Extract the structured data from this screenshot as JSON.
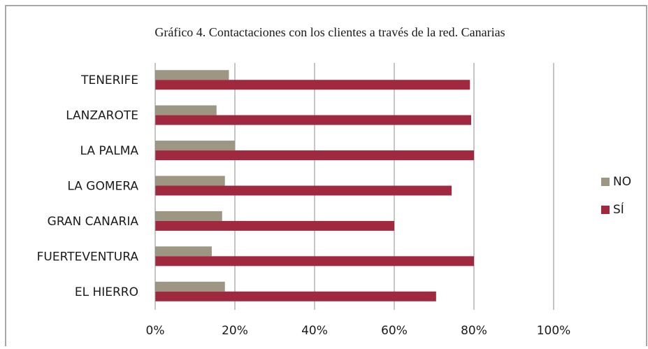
{
  "chart_data": {
    "type": "bar",
    "orientation": "horizontal",
    "title": "Gráfico 4. Contactaciones con los clientes a través de la red. Canarias",
    "categories": [
      "TENERIFE",
      "LANZAROTE",
      "LA PALMA",
      "LA GOMERA",
      "GRAN CANARIA",
      "FUERTEVENTURA",
      "EL HIERRO"
    ],
    "series": [
      {
        "name": "NO",
        "color": "#9c9683",
        "values": [
          18.5,
          15.4,
          20,
          17.5,
          16.8,
          14.2,
          17.5
        ]
      },
      {
        "name": "SÍ",
        "color": "#a0283f",
        "values": [
          79,
          79.3,
          80,
          74.4,
          60,
          80,
          70.5
        ]
      }
    ],
    "xlim": [
      0,
      100
    ],
    "xticks": [
      {
        "value": 0,
        "label": "0%"
      },
      {
        "value": 20,
        "label": "20%"
      },
      {
        "value": 40,
        "label": "40%"
      },
      {
        "value": 60,
        "label": "60%"
      },
      {
        "value": 80,
        "label": "80%"
      },
      {
        "value": 100,
        "label": "100%"
      }
    ],
    "grid": true,
    "legend": "right"
  }
}
